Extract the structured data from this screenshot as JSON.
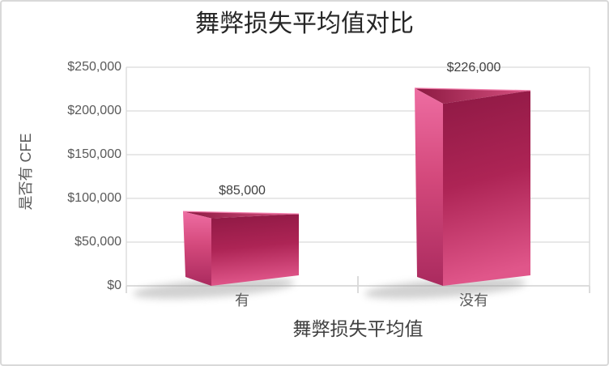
{
  "chart_data": {
    "type": "bar",
    "style": "3d-box",
    "title": "舞弊损失平均值对比",
    "categories": [
      "有",
      "没有"
    ],
    "values": [
      85000,
      226000
    ],
    "data_labels": [
      "$85,000",
      "$226,000"
    ],
    "xlabel": "舞弊损失平均值",
    "ylabel": "是否有 CFE",
    "ylim": [
      0,
      250000
    ],
    "y_ticks": [
      {
        "value": 250000,
        "label": "$250,000"
      },
      {
        "value": 200000,
        "label": "$200,000"
      },
      {
        "value": 150000,
        "label": "$150,000"
      },
      {
        "value": 100000,
        "label": "$100,000"
      },
      {
        "value": 50000,
        "label": "$50,000"
      },
      {
        "value": 0,
        "label": "$0"
      }
    ],
    "grid": true,
    "legend": "none"
  },
  "colors": {
    "bar_front_top": "#8e1944",
    "bar_front_mid": "#ad2455",
    "bar_front_bottom": "#e0568a",
    "bar_side_top": "#ee6da2",
    "bar_side_mid": "#d4497c",
    "bar_side_bottom": "#aa2a5e",
    "bar_top_left": "#8c1941",
    "bar_top_right": "#d75181",
    "bar_rim": "#f27cab",
    "grid": "#d9d9d9",
    "shadow": "#9a9a9a",
    "title_text": "#262626",
    "axis_text": "#595959",
    "label_text": "#3f3f3f",
    "background": "#ffffff"
  }
}
